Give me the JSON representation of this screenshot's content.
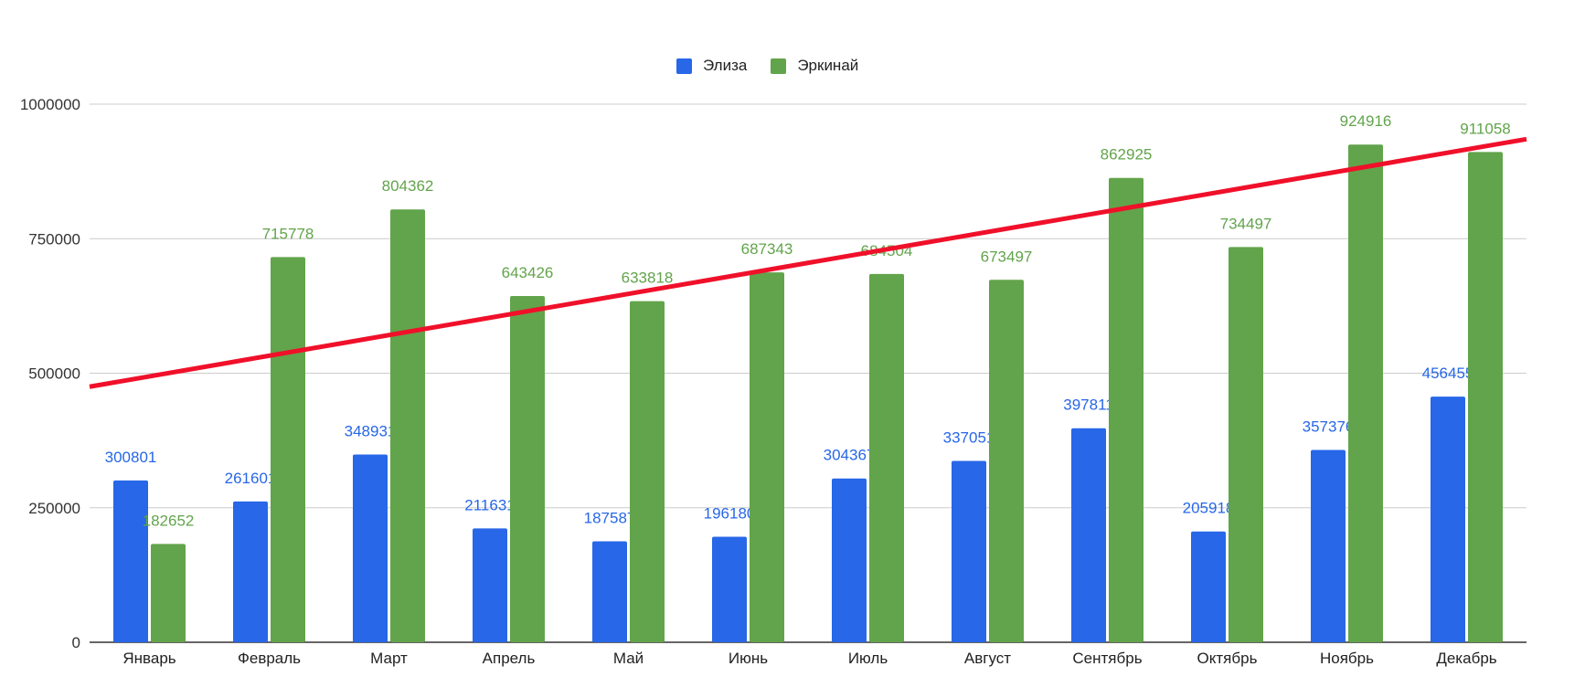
{
  "chart_data": {
    "type": "bar",
    "categories": [
      "Январь",
      "Февраль",
      "Март",
      "Апрель",
      "Май",
      "Июнь",
      "Июль",
      "Август",
      "Сентябрь",
      "Октябрь",
      "Ноябрь",
      "Декабрь"
    ],
    "series": [
      {
        "name": "Элиза",
        "color": "#2767E8",
        "values": [
          300801,
          261601,
          348931,
          211631,
          187587,
          196180,
          304367,
          337051,
          397811,
          205918,
          357376,
          456455
        ]
      },
      {
        "name": "Эркинай",
        "color": "#62A44B",
        "values": [
          182652,
          715778,
          804362,
          643426,
          633818,
          687343,
          684504,
          673497,
          862925,
          734497,
          924916,
          911058
        ]
      }
    ],
    "ylim": [
      0,
      1000000
    ],
    "yticks": [
      0,
      250000,
      500000,
      750000,
      1000000
    ],
    "ytick_labels": [
      "0",
      "250000",
      "500000",
      "750000",
      "1000000"
    ],
    "grid": true,
    "legend_position": "top",
    "data_labels": true,
    "trendline": {
      "color": "#F0102A",
      "start_value": 475000,
      "end_value": 935000
    }
  }
}
